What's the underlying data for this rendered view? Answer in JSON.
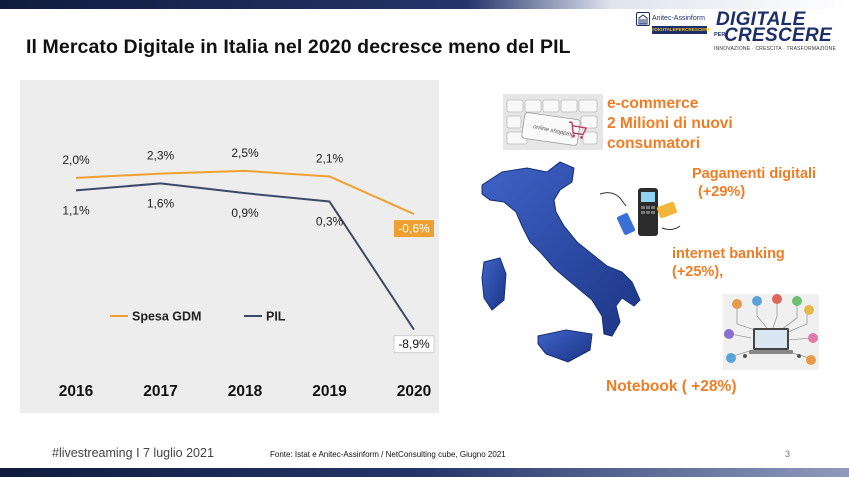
{
  "slide": {
    "title": "Il Mercato Digitale in Italia nel 2020 decresce meno del PIL",
    "footer_left": "#livestreaming I 7 luglio 2021",
    "source": "Fonte: Istat e Anitec-Assinform / NetConsulting cube, Giugno 2021",
    "page_number": "3"
  },
  "logos": {
    "anitec_name": "Anitec-Assinform",
    "anitec_tag": "#DIGITALEPERCRESCERE",
    "dpc_line1": "DIGITALE",
    "dpc_per": "PER",
    "dpc_line2": "CRESCERE",
    "dpc_tagline": "INNOVAZIONE · CRESCITA · TRASFORMAZIONE"
  },
  "callouts": {
    "ecommerce": [
      "e-commerce",
      "2 Milioni di nuovi",
      "consumatori"
    ],
    "payments": [
      "Pagamenti digitali",
      "(+29%)"
    ],
    "banking": [
      "internet banking",
      "(+25%),"
    ],
    "notebook": "Notebook ( +28%)"
  },
  "images": {
    "ecommerce_image_text": "online shopping"
  },
  "colors": {
    "accent_orange": "#f0a030",
    "callout_orange": "#f07c24",
    "pil_line": "#3d4a66",
    "map_blue": "#2b4aa8",
    "panel_grey": "#ededed"
  },
  "chart_data": {
    "type": "line",
    "categories": [
      "2016",
      "2017",
      "2018",
      "2019",
      "2020"
    ],
    "series": [
      {
        "name": "Spesa GDM",
        "color": "#f0a030",
        "values": [
          2.0,
          2.3,
          2.5,
          2.1,
          -0.6
        ],
        "labels": [
          "2,0%",
          "2,3%",
          "2,5%",
          "2,1%",
          "-0,6%"
        ]
      },
      {
        "name": "PIL",
        "color": "#3d4a66",
        "values": [
          1.1,
          1.6,
          0.9,
          0.3,
          -8.9
        ],
        "labels": [
          "1,1%",
          "1,6%",
          "0,9%",
          "0,3%",
          "-8,9%"
        ]
      }
    ],
    "ylim": [
      -10,
      4
    ],
    "grid": false,
    "legend_position": "bottom-left"
  }
}
